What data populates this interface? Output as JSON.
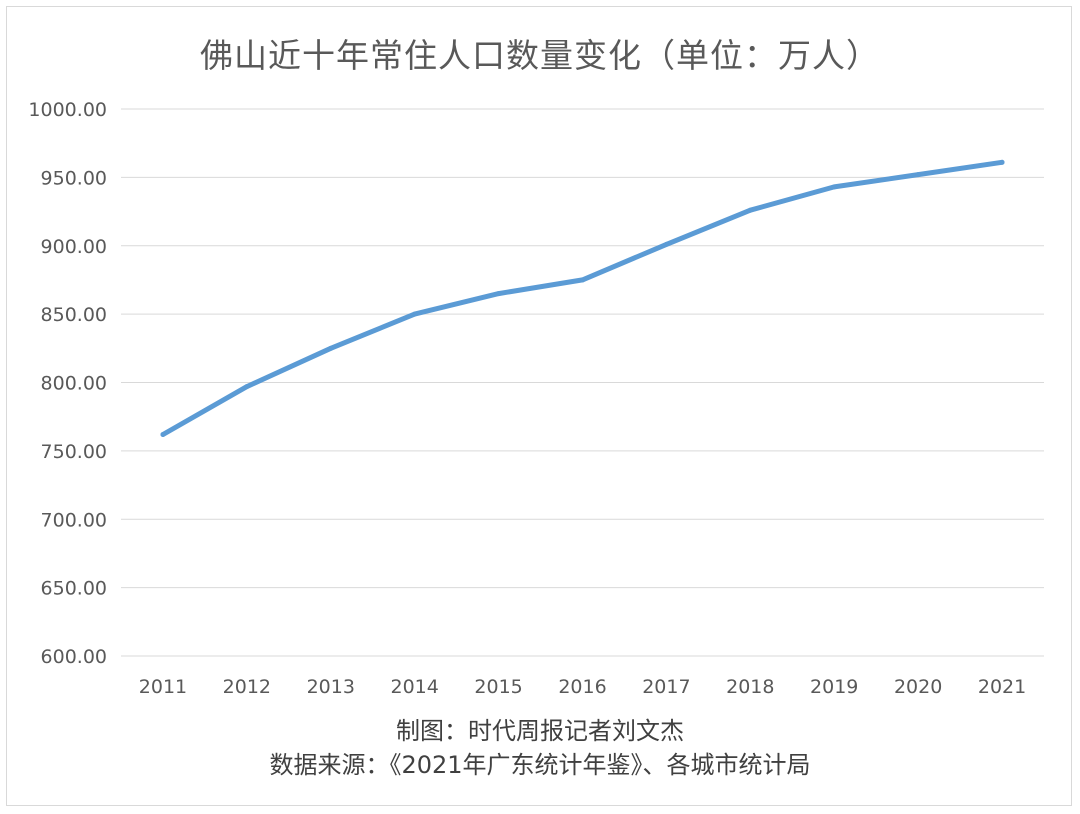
{
  "chart_data": {
    "type": "line",
    "title": "佛山近十年常住人口数量变化（单位：万人）",
    "categories": [
      "2011",
      "2012",
      "2013",
      "2014",
      "2015",
      "2016",
      "2017",
      "2018",
      "2019",
      "2020",
      "2021"
    ],
    "series": [
      {
        "values": [
          762,
          797,
          825,
          850,
          865,
          875,
          901,
          926,
          943,
          952,
          961
        ]
      }
    ],
    "ylim": [
      600,
      1000
    ],
    "ytick_labels": [
      "600.00",
      "650.00",
      "700.00",
      "750.00",
      "800.00",
      "850.00",
      "900.00",
      "950.00",
      "1000.00"
    ],
    "grid": true,
    "legend": "none",
    "line_color": "#5b9bd5"
  },
  "credits": {
    "chart_by": "制图：时代周报记者刘文杰",
    "source": "数据来源：《2021年广东统计年鉴》、各城市统计局"
  }
}
